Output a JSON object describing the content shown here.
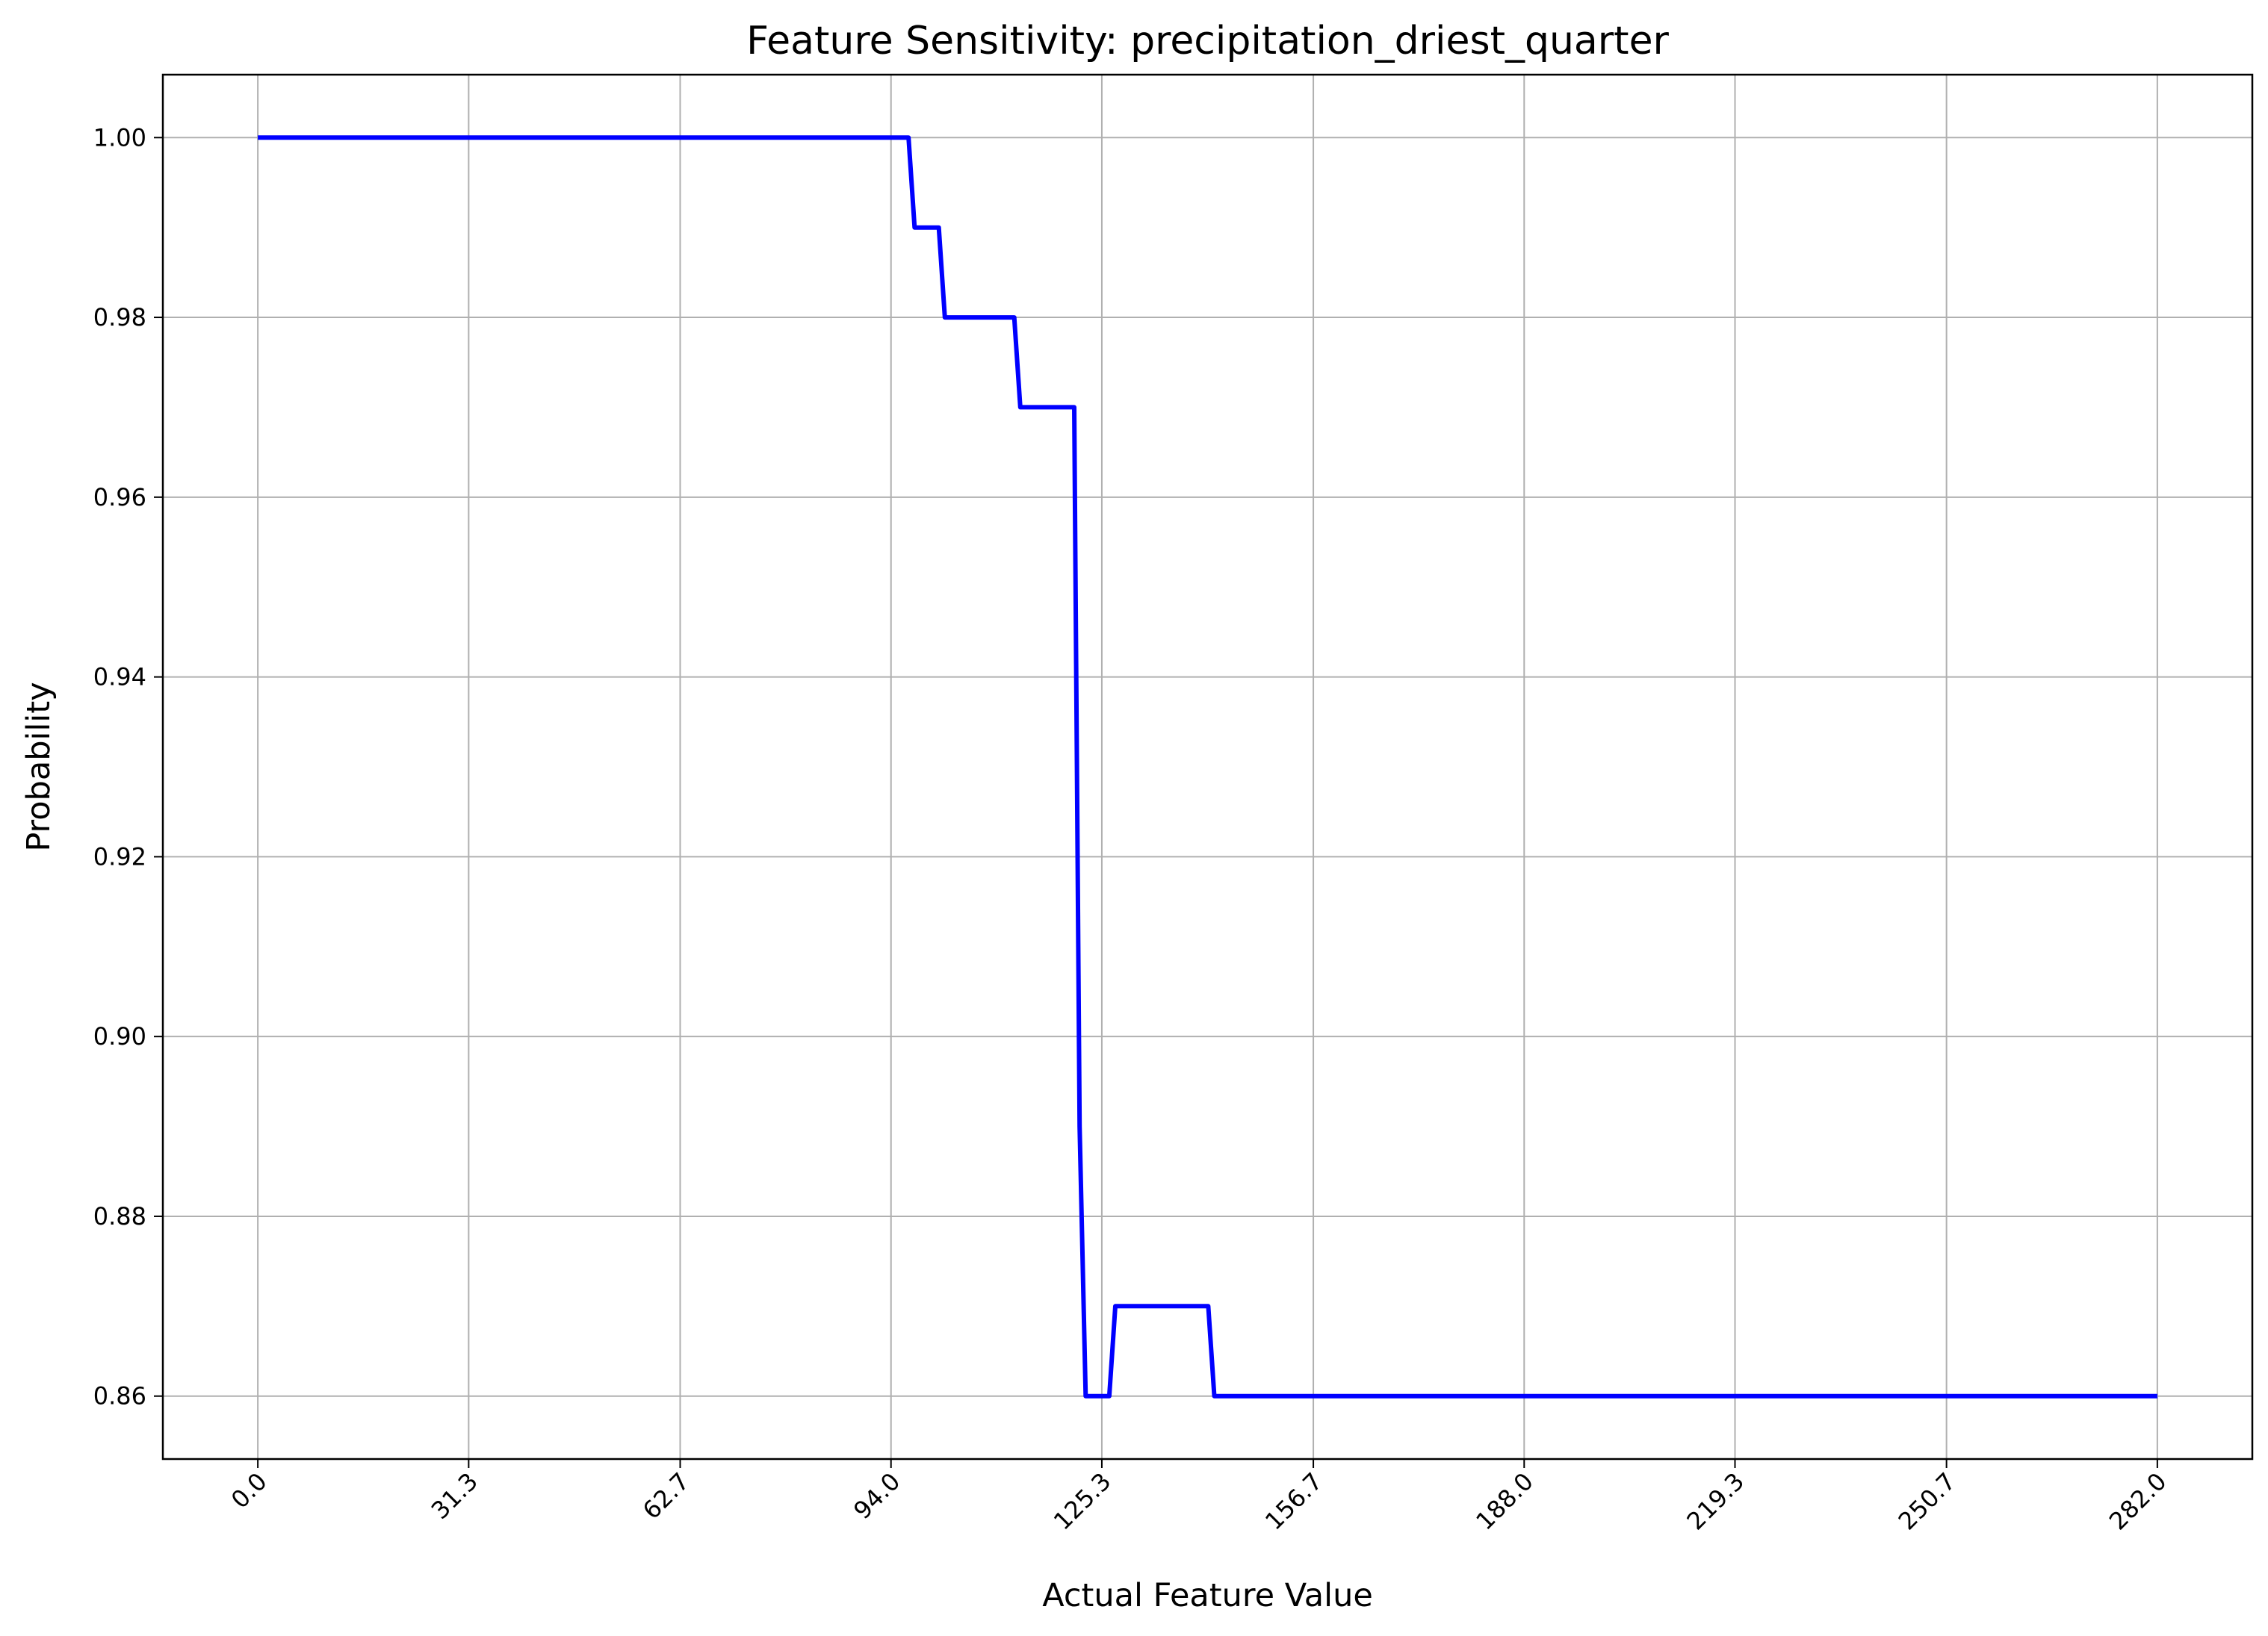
{
  "chart_data": {
    "type": "line",
    "title": "Feature Sensitivity: precipitation_driest_quarter",
    "xlabel": "Actual Feature Value",
    "ylabel": "Probability",
    "xlim": [
      -14.1,
      296.1
    ],
    "ylim": [
      0.853,
      1.007
    ],
    "x_ticks": [
      0.0,
      31.3,
      62.7,
      94.0,
      125.3,
      156.7,
      188.0,
      219.3,
      250.7,
      282.0
    ],
    "x_tick_labels": [
      "0.0",
      "31.3",
      "62.7",
      "94.0",
      "125.3",
      "156.7",
      "188.0",
      "219.3",
      "250.7",
      "282.0"
    ],
    "y_ticks": [
      0.86,
      0.88,
      0.9,
      0.92,
      0.94,
      0.96,
      0.98,
      1.0
    ],
    "y_tick_labels": [
      "0.86",
      "0.88",
      "0.90",
      "0.92",
      "0.94",
      "0.96",
      "0.98",
      "1.00"
    ],
    "grid": true,
    "line_color": "#0000ff",
    "series": [
      {
        "x": [
          0.0,
          96.6,
          97.5,
          101.1,
          102.0,
          112.3,
          113.2,
          121.2,
          122.0,
          122.9,
          126.4,
          127.3,
          141.1,
          142.0,
          282.0
        ],
        "y": [
          1.0,
          1.0,
          0.99,
          0.99,
          0.98,
          0.98,
          0.97,
          0.97,
          0.89,
          0.86,
          0.86,
          0.87,
          0.87,
          0.86,
          0.86
        ]
      }
    ]
  }
}
